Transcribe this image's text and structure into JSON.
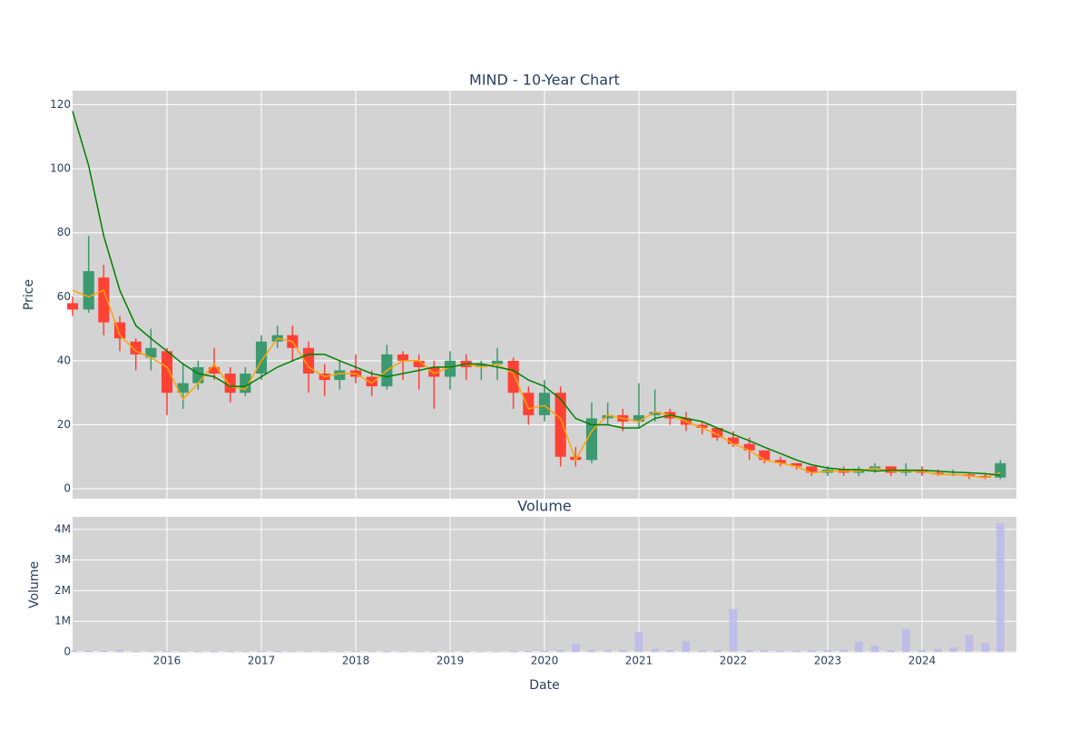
{
  "chart_data": [
    {
      "type": "candlestick",
      "title": "MIND - 10-Year Chart",
      "ylabel": "Price",
      "increasing_color": "#3d9970",
      "decreasing_color": "#ff4136",
      "xlim": [
        2015.0,
        2025.0
      ],
      "xticks": [
        2016,
        2017,
        2018,
        2019,
        2020,
        2021,
        2022,
        2023,
        2024
      ],
      "ylim": [
        -3.1,
        124.4
      ],
      "yticks": [
        0,
        20,
        40,
        60,
        80,
        100,
        120
      ],
      "grid": true,
      "x": [
        2015.0,
        2015.17,
        2015.33,
        2015.5,
        2015.67,
        2015.83,
        2016.0,
        2016.17,
        2016.33,
        2016.5,
        2016.67,
        2016.83,
        2017.0,
        2017.17,
        2017.33,
        2017.5,
        2017.67,
        2017.83,
        2018.0,
        2018.17,
        2018.33,
        2018.5,
        2018.67,
        2018.83,
        2019.0,
        2019.17,
        2019.33,
        2019.5,
        2019.67,
        2019.83,
        2020.0,
        2020.17,
        2020.33,
        2020.5,
        2020.67,
        2020.83,
        2021.0,
        2021.17,
        2021.33,
        2021.5,
        2021.67,
        2021.83,
        2022.0,
        2022.17,
        2022.33,
        2022.5,
        2022.67,
        2022.83,
        2023.0,
        2023.17,
        2023.33,
        2023.5,
        2023.67,
        2023.83,
        2024.0,
        2024.17,
        2024.33,
        2024.5,
        2024.67,
        2024.83
      ],
      "open": [
        58,
        56,
        66,
        52,
        46,
        41,
        43,
        30,
        33,
        38,
        36,
        30,
        36,
        46,
        48,
        44,
        36,
        34,
        37,
        35,
        32,
        42,
        40,
        38,
        35,
        40,
        38,
        39,
        40,
        30,
        23,
        30,
        10,
        9,
        22,
        23,
        21,
        23,
        24,
        22,
        20,
        19,
        16,
        14,
        12,
        9,
        8,
        7,
        5,
        6,
        5,
        6,
        7,
        5,
        6,
        5,
        4.5,
        4.5,
        4,
        3.5
      ],
      "high": [
        60,
        79,
        70,
        54,
        47,
        50,
        44,
        39,
        40,
        44,
        38,
        38,
        48,
        51,
        51,
        46,
        39,
        40,
        42,
        37,
        45,
        43,
        42,
        40,
        43,
        42,
        40,
        44,
        41,
        32,
        34,
        32,
        13,
        27,
        27,
        25,
        33,
        31,
        25,
        24,
        21,
        19,
        18,
        16,
        12,
        10,
        8,
        7,
        7,
        7,
        7,
        8,
        7,
        8,
        7,
        6,
        6,
        5,
        5,
        9
      ],
      "low": [
        54,
        55,
        48,
        43,
        37,
        37,
        23,
        25,
        31,
        34,
        27,
        29,
        34,
        44,
        40,
        30,
        29,
        31,
        33,
        29,
        31,
        34,
        31,
        25,
        31,
        34,
        34,
        34,
        25,
        20,
        21,
        7,
        7,
        8,
        20,
        18,
        19,
        21,
        20,
        18,
        17,
        15,
        13,
        9,
        8,
        7,
        6,
        4,
        4,
        4,
        4,
        5,
        4,
        4,
        4,
        4,
        4,
        3,
        3,
        3
      ],
      "close": [
        56,
        68,
        52,
        47,
        42,
        44,
        30,
        33,
        38,
        36,
        30,
        36,
        46,
        48,
        44,
        36,
        34,
        37,
        35,
        32,
        42,
        40,
        38,
        35,
        40,
        38,
        39,
        40,
        30,
        23,
        30,
        10,
        9,
        22,
        23,
        21,
        23,
        24,
        22,
        20,
        19,
        16,
        14,
        12,
        9,
        8,
        7,
        5,
        6,
        5,
        6,
        7,
        5,
        6,
        5,
        4.5,
        4.5,
        4,
        3.5,
        8
      ],
      "lines": [
        {
          "color": "#ffa500",
          "values": [
            62,
            60,
            62,
            48,
            43,
            41,
            38,
            28,
            33,
            39,
            32,
            31,
            40,
            47,
            46,
            38,
            35,
            36,
            36,
            33,
            37,
            40,
            40,
            36,
            38,
            39,
            38,
            39,
            36,
            25,
            26,
            22,
            9,
            18,
            23,
            22,
            21,
            24,
            23,
            21,
            19,
            17,
            14,
            12,
            9,
            8,
            7,
            5,
            5.5,
            5.5,
            5.5,
            6.5,
            5.5,
            5.5,
            5.5,
            4.5,
            4.5,
            4,
            3.5,
            5
          ]
        },
        {
          "color": "#008000",
          "values": [
            118,
            101,
            79,
            62,
            51,
            47,
            43,
            39,
            36,
            35,
            32,
            32,
            35,
            38,
            40,
            42,
            42,
            40,
            38,
            36,
            35,
            36,
            37,
            38,
            38,
            39,
            39,
            38,
            37,
            34,
            32,
            28,
            22,
            20,
            20,
            19,
            19,
            22,
            23,
            22,
            21,
            19,
            17,
            15,
            13,
            11,
            9,
            7.5,
            6.5,
            6,
            6,
            5.5,
            5.8,
            5.8,
            5.8,
            5.5,
            5.2,
            5,
            4.7,
            4.3
          ]
        }
      ]
    },
    {
      "type": "bar",
      "title": "Volume",
      "ylabel": "Volume",
      "xlabel": "Date",
      "color": "#b8b8ee",
      "xlim": [
        2015.0,
        2025.0
      ],
      "xticks": [
        2016,
        2017,
        2018,
        2019,
        2020,
        2021,
        2022,
        2023,
        2024
      ],
      "ylim": [
        -30000,
        4410000
      ],
      "grid": true,
      "yticks": [
        0,
        {
          "value": 1000000,
          "label": "1M"
        },
        {
          "value": 2000000,
          "label": "2M"
        },
        {
          "value": 3000000,
          "label": "3M"
        },
        {
          "value": 4000000,
          "label": "4M"
        }
      ],
      "x": [
        2015.0,
        2015.17,
        2015.33,
        2015.5,
        2015.67,
        2015.83,
        2016.0,
        2016.17,
        2016.33,
        2016.5,
        2016.67,
        2016.83,
        2017.0,
        2017.17,
        2017.33,
        2017.5,
        2017.67,
        2017.83,
        2018.0,
        2018.17,
        2018.33,
        2018.5,
        2018.67,
        2018.83,
        2019.0,
        2019.17,
        2019.33,
        2019.5,
        2019.67,
        2019.83,
        2020.0,
        2020.17,
        2020.33,
        2020.5,
        2020.67,
        2020.83,
        2021.0,
        2021.17,
        2021.33,
        2021.5,
        2021.67,
        2021.83,
        2022.0,
        2022.17,
        2022.33,
        2022.5,
        2022.67,
        2022.83,
        2023.0,
        2023.17,
        2023.33,
        2023.5,
        2023.67,
        2023.83,
        2024.0,
        2024.17,
        2024.33,
        2024.5,
        2024.67,
        2024.83
      ],
      "values": [
        40000,
        30000,
        30000,
        60000,
        20000,
        20000,
        30000,
        20000,
        20000,
        30000,
        20000,
        20000,
        30000,
        30000,
        20000,
        20000,
        20000,
        20000,
        20000,
        20000,
        30000,
        20000,
        20000,
        30000,
        20000,
        20000,
        20000,
        20000,
        30000,
        30000,
        40000,
        60000,
        250000,
        60000,
        50000,
        60000,
        650000,
        100000,
        60000,
        350000,
        50000,
        60000,
        1400000,
        60000,
        50000,
        40000,
        40000,
        50000,
        60000,
        70000,
        330000,
        200000,
        60000,
        750000,
        60000,
        100000,
        150000,
        550000,
        300000,
        4200000
      ]
    }
  ]
}
